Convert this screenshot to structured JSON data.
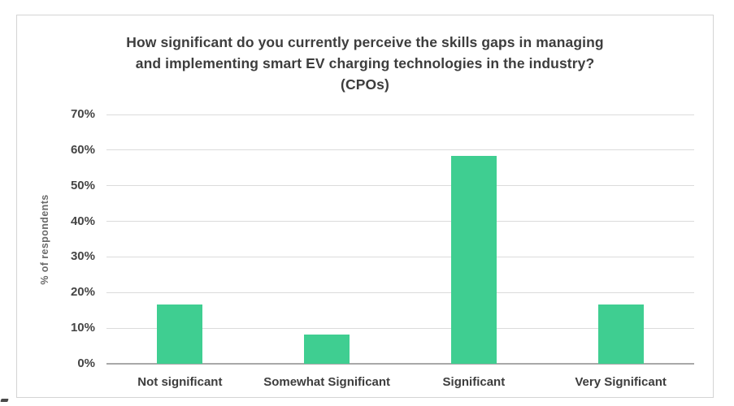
{
  "page": {
    "background": "#ffffff"
  },
  "chart": {
    "title_lines": [
      "How significant do you currently perceive the skills gaps in managing",
      "and implementing smart EV charging technologies in the industry?",
      "(CPOs)"
    ]
  },
  "chart_data": {
    "type": "bar",
    "title": "How significant do you currently perceive the skills gaps in managing and implementing smart EV charging technologies in the industry? (CPOs)",
    "categories": [
      "Not significant",
      "Somewhat Significant",
      "Significant",
      "Very Significant"
    ],
    "values": [
      16.7,
      8.3,
      58.3,
      16.7
    ],
    "xlabel": "",
    "ylabel": "% of respondents",
    "ylim": [
      0,
      70
    ],
    "ytick_step": 10,
    "ytick_labels": [
      "0%",
      "10%",
      "20%",
      "30%",
      "40%",
      "50%",
      "60%",
      "70%"
    ],
    "grid": true,
    "legend": false,
    "colors": {
      "bar": "#3fce91",
      "gridline": "#dbdbdb",
      "axis_line": "#a9a9a9",
      "title_text": "#3d3d3d",
      "tick_text": "#454545",
      "axis_title_text": "#6a6a6a",
      "container_border": "#d4d4d4"
    }
  }
}
